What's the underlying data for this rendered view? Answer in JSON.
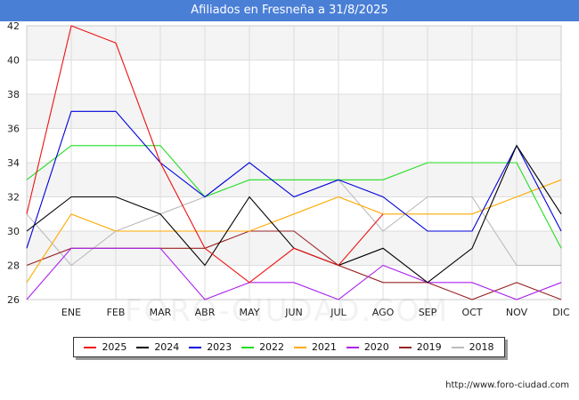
{
  "header": {
    "title": "Afiliados en Fresneña a 31/8/2025"
  },
  "footer": {
    "source": "http://www.foro-ciudad.com",
    "watermark": "FORO-CIUDAD.COM"
  },
  "chart_data": {
    "type": "line",
    "title": "Afiliados en Fresneña a 31/8/2025",
    "xlabel": "",
    "ylabel": "",
    "x": [
      "",
      "ENE",
      "FEB",
      "MAR",
      "ABR",
      "MAY",
      "JUN",
      "JUL",
      "AGO",
      "SEP",
      "OCT",
      "NOV",
      "DIC"
    ],
    "ylim": [
      26,
      42
    ],
    "yticks": [
      26,
      28,
      30,
      32,
      34,
      36,
      38,
      40,
      42
    ],
    "grid": true,
    "legend_position": "bottom",
    "series": [
      {
        "name": "2025",
        "color": "#ee1111",
        "values": [
          31,
          42,
          41,
          34,
          29,
          27,
          29,
          28,
          31,
          null,
          null,
          null,
          null
        ]
      },
      {
        "name": "2024",
        "color": "#000000",
        "values": [
          30,
          32,
          32,
          31,
          28,
          32,
          29,
          28,
          29,
          27,
          29,
          35,
          31
        ]
      },
      {
        "name": "2023",
        "color": "#0000dd",
        "values": [
          29,
          37,
          37,
          34,
          32,
          34,
          32,
          33,
          32,
          30,
          30,
          35,
          30
        ]
      },
      {
        "name": "2022",
        "color": "#22dd22",
        "values": [
          33,
          35,
          35,
          35,
          32,
          33,
          33,
          33,
          33,
          34,
          34,
          34,
          29
        ]
      },
      {
        "name": "2021",
        "color": "#ffaa00",
        "values": [
          27,
          31,
          30,
          30,
          30,
          30,
          31,
          32,
          31,
          31,
          31,
          32,
          33
        ]
      },
      {
        "name": "2020",
        "color": "#aa22ee",
        "values": [
          26,
          29,
          29,
          29,
          26,
          27,
          27,
          26,
          28,
          27,
          27,
          26,
          27
        ]
      },
      {
        "name": "2019",
        "color": "#992222",
        "values": [
          28,
          29,
          29,
          29,
          29,
          30,
          30,
          28,
          27,
          27,
          26,
          27,
          26
        ]
      },
      {
        "name": "2018",
        "color": "#bbbbbb",
        "values": [
          31,
          28,
          30,
          31,
          32,
          34,
          32,
          33,
          30,
          32,
          32,
          28,
          28
        ]
      }
    ]
  }
}
